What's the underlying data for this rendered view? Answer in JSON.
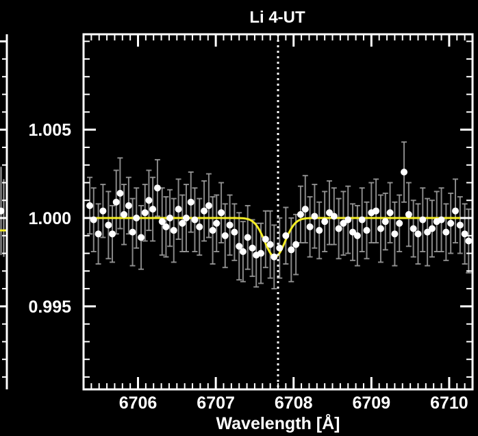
{
  "chart_data": {
    "type": "scatter",
    "title": "Li 4-UT",
    "xlabel": "Wavelength [Å]",
    "ylabel": "",
    "xlim": [
      6705.3,
      6710.3
    ],
    "ylim": [
      0.9903,
      1.0104
    ],
    "xticks": [
      6706,
      6707,
      6708,
      6709,
      6710
    ],
    "xtick_labels": [
      "6706",
      "6707",
      "6708",
      "6709",
      "6710"
    ],
    "yticks": [
      0.995,
      1.0,
      1.005
    ],
    "ytick_labels": [
      "0.995",
      "1.000",
      "1.005"
    ],
    "reference_line_x": 6707.8,
    "colors": {
      "background": "#000000",
      "axes": "#ffffff",
      "points": "#ffffff",
      "errorbars": "#a0a0a0",
      "model": "#f5ee25",
      "reference_line": "#ffffff"
    },
    "model": {
      "type": "gaussian",
      "continuum": 1.0,
      "center": 6707.76,
      "depth": 0.0022,
      "sigma": 0.13
    },
    "series": [
      {
        "type": "errorbar",
        "x": [
          6705.38,
          6705.43,
          6705.49,
          6705.55,
          6705.62,
          6705.67,
          6705.72,
          6705.77,
          6705.82,
          6705.88,
          6705.93,
          6705.98,
          6706.04,
          6706.09,
          6706.14,
          6706.19,
          6706.25,
          6706.31,
          6706.36,
          6706.41,
          6706.46,
          6706.52,
          6706.57,
          6706.62,
          6706.68,
          6706.73,
          6706.79,
          6706.85,
          6706.91,
          6706.96,
          6707.01,
          6707.07,
          6707.12,
          6707.18,
          6707.24,
          6707.3,
          6707.35,
          6707.41,
          6707.47,
          6707.52,
          6707.58,
          6707.64,
          6707.7,
          6707.75,
          6707.82,
          6707.9,
          6707.97,
          6708.03,
          6708.09,
          6708.15,
          6708.21,
          6708.27,
          6708.33,
          6708.4,
          6708.46,
          6708.52,
          6708.58,
          6708.64,
          6708.7,
          6708.76,
          6708.82,
          6708.88,
          6708.94,
          6709.0,
          6709.06,
          6709.12,
          6709.18,
          6709.24,
          6709.3,
          6709.36,
          6709.42,
          6709.48,
          6709.54,
          6709.6,
          6709.66,
          6709.72,
          6709.78,
          6709.84,
          6709.9,
          6709.96,
          6710.02,
          6710.08,
          6710.14,
          6710.2,
          6710.25
        ],
        "y": [
          1.0007,
          0.9999,
          0.9991,
          1.0004,
          0.9996,
          0.9991,
          1.0009,
          1.0014,
          1.0002,
          1.0007,
          0.9992,
          1.0,
          0.9989,
          1.0003,
          1.001,
          1.0005,
          1.0017,
          0.9998,
          0.9995,
          1.0,
          0.9993,
          1.0005,
          0.9997,
          1.0,
          1.0009,
          0.9999,
          0.9995,
          1.0004,
          1.0007,
          0.9993,
          0.9997,
          1.0003,
          0.999,
          0.9996,
          0.9992,
          0.9984,
          0.9981,
          0.9989,
          0.9983,
          0.9979,
          0.998,
          0.9988,
          0.9985,
          0.9978,
          0.9983,
          0.999,
          0.9982,
          0.9985,
          1.0002,
          1.0005,
          0.9995,
          1.0001,
          0.9993,
          0.9998,
          1.0003,
          1.0001,
          0.9994,
          0.9997,
          0.9999,
          0.9992,
          0.999,
          0.9999,
          0.9993,
          1.0003,
          1.0004,
          0.9994,
          0.9998,
          1.0003,
          0.9991,
          0.9997,
          1.0026,
          1.0002,
          0.9994,
          0.9991,
          0.9999,
          0.9992,
          0.9994,
          0.9998,
          0.9999,
          0.9992,
          0.9997,
          1.0004,
          0.9996,
          0.9991,
          0.9987
        ],
        "yerr": [
          0.0016,
          0.0018,
          0.0017,
          0.0015,
          0.0019,
          0.0016,
          0.0018,
          0.002,
          0.0017,
          0.0016,
          0.0019,
          0.0017,
          0.0018,
          0.0016,
          0.0017,
          0.0018,
          0.0016,
          0.0019,
          0.0017,
          0.0016,
          0.0018,
          0.0017,
          0.0016,
          0.0019,
          0.0017,
          0.0018,
          0.0016,
          0.0017,
          0.0018,
          0.0019,
          0.0016,
          0.0017,
          0.0018,
          0.0017,
          0.0016,
          0.0019,
          0.0017,
          0.0018,
          0.0016,
          0.0018,
          0.0017,
          0.0016,
          0.0019,
          0.0018,
          0.0017,
          0.0016,
          0.0018,
          0.0017,
          0.0016,
          0.0019,
          0.0017,
          0.0018,
          0.0016,
          0.0017,
          0.0018,
          0.0016,
          0.0017,
          0.0018,
          0.0019,
          0.0016,
          0.0017,
          0.0018,
          0.0016,
          0.0017,
          0.0018,
          0.0019,
          0.0016,
          0.0017,
          0.0018,
          0.0016,
          0.0017,
          0.0018,
          0.0016,
          0.0017,
          0.0018,
          0.0019,
          0.0016,
          0.0017,
          0.0018,
          0.0016,
          0.0017,
          0.0018,
          0.0016,
          0.0017,
          0.0018
        ]
      }
    ],
    "left_panel": {
      "ylim": [
        0.9903,
        1.0104
      ],
      "model_level": 0.9993,
      "points": [
        {
          "x": 0.15,
          "y": 1.0004,
          "yerr": 0.0025
        }
      ],
      "errorbar_only_x": [
        0.55
      ]
    }
  }
}
